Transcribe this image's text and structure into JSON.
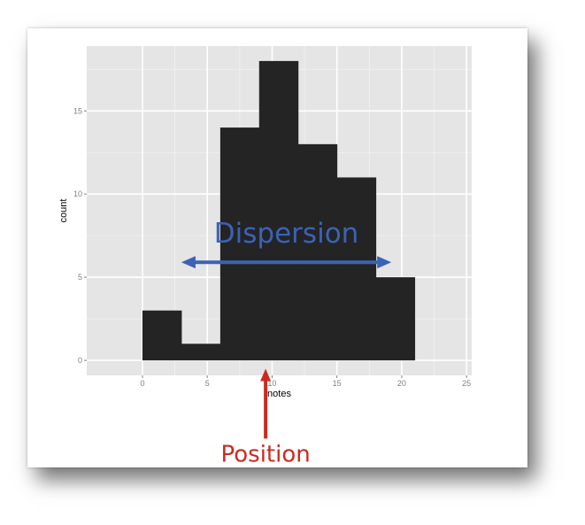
{
  "chart_data": {
    "type": "bar",
    "title": "",
    "xlabel": "notes",
    "ylabel": "count",
    "xlim": [
      -4.3,
      25.4
    ],
    "ylim": [
      -0.9,
      18.9
    ],
    "xticks": [
      0,
      5,
      10,
      15,
      20,
      25
    ],
    "yticks": [
      0,
      5,
      10,
      15
    ],
    "xtick_labels": [
      "0",
      "5",
      "10",
      "15",
      "20",
      "25"
    ],
    "ytick_labels": [
      "0",
      "5",
      "10",
      "15"
    ],
    "bins": [
      {
        "start": 0,
        "end": 3,
        "count": 3
      },
      {
        "start": 3,
        "end": 6,
        "count": 1
      },
      {
        "start": 6,
        "end": 9,
        "count": 14
      },
      {
        "start": 9,
        "end": 12,
        "count": 18
      },
      {
        "start": 12,
        "end": 15,
        "count": 13
      },
      {
        "start": 15,
        "end": 18,
        "count": 11
      },
      {
        "start": 18,
        "end": 21,
        "count": 5
      }
    ],
    "grid": true,
    "background": "#e5e5e5",
    "bar_color": "#242424",
    "annotations": [
      {
        "text": "Dispersion",
        "color": "#3a63b6",
        "arrow": "double-headed horizontal",
        "x_from": 3,
        "x_to": 19.2,
        "y": 5.9
      },
      {
        "text": "Position",
        "color": "#cc2a1f",
        "arrow": "single-headed vertical",
        "x": 9.5,
        "y_from": -4.7,
        "y_to": -0.5
      }
    ]
  }
}
